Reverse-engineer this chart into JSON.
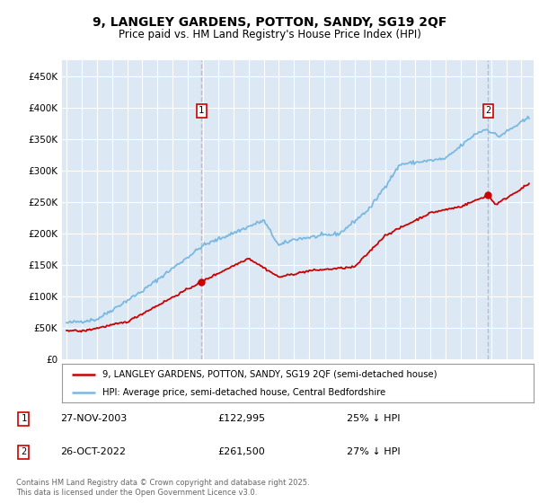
{
  "title_line1": "9, LANGLEY GARDENS, POTTON, SANDY, SG19 2QF",
  "title_line2": "Price paid vs. HM Land Registry's House Price Index (HPI)",
  "bg_color": "#ffffff",
  "plot_bg_color": "#dce9f5",
  "grid_color": "#ffffff",
  "ylim": [
    0,
    475000
  ],
  "yticks": [
    0,
    50000,
    100000,
    150000,
    200000,
    250000,
    300000,
    350000,
    400000,
    450000
  ],
  "sale1_date": "27-NOV-2003",
  "sale1_price": 122995,
  "sale1_pct": "25% ↓ HPI",
  "sale2_date": "26-OCT-2022",
  "sale2_price": 261500,
  "sale2_pct": "27% ↓ HPI",
  "legend_line1": "9, LANGLEY GARDENS, POTTON, SANDY, SG19 2QF (semi-detached house)",
  "legend_line2": "HPI: Average price, semi-detached house, Central Bedfordshire",
  "footer": "Contains HM Land Registry data © Crown copyright and database right 2025.\nThis data is licensed under the Open Government Licence v3.0.",
  "red_color": "#cc0000",
  "blue_color": "#7ab8e0",
  "vline_color": "#bbbbcc",
  "sale1_x": 2003.9,
  "sale2_x": 2022.8
}
